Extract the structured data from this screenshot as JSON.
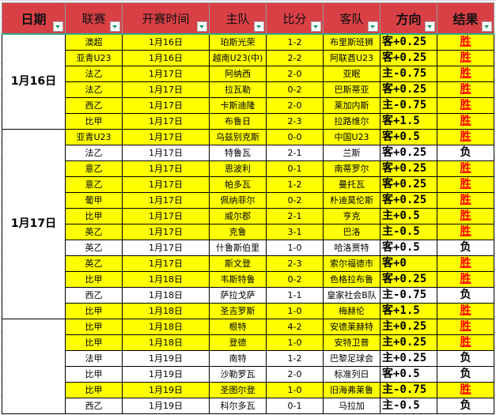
{
  "headers": [
    "日期",
    "联赛",
    "开赛时间",
    "主队",
    "比分",
    "客队",
    "方向",
    "结果"
  ],
  "groups": [
    {
      "date": "1月16日",
      "rows": 6
    },
    {
      "date": "1月17日",
      "rows": 12
    },
    {
      "date": "",
      "rows": 6
    }
  ],
  "rows": [
    [
      "澳超",
      "1月16日",
      "珀斯光荣",
      "1-2",
      "布里斯班狮",
      "客+0.25",
      "胜"
    ],
    [
      "亚青U23",
      "1月16日",
      "越南U23(中)",
      "2-2",
      "阿联酋U23",
      "客+0.25",
      "胜"
    ],
    [
      "法乙",
      "1月17日",
      "阿纳西",
      "2-0",
      "亚眠",
      "主-0.75",
      "胜"
    ],
    [
      "法乙",
      "1月17日",
      "拉瓦勒",
      "0-2",
      "巴斯蒂亚",
      "客+0.25",
      "胜"
    ],
    [
      "西乙",
      "1月17日",
      "卡斯迪隆",
      "2-0",
      "莱加内斯",
      "主-0.75",
      "胜"
    ],
    [
      "比甲",
      "1月17日",
      "布鲁日",
      "2-3",
      "拉路维尔",
      "客+1.5",
      "胜"
    ],
    [
      "亚青U23",
      "1月17日",
      "乌兹别克斯",
      "0-0",
      "中国U23",
      "客+0.5",
      "胜"
    ],
    [
      "法乙",
      "1月17日",
      "特鲁瓦",
      "2-1",
      "兰斯",
      "客+0.25",
      "负"
    ],
    [
      "意乙",
      "1月17日",
      "恩波利",
      "0-1",
      "南蒂罗尔",
      "客+0.25",
      "胜"
    ],
    [
      "意乙",
      "1月17日",
      "帕多瓦",
      "1-2",
      "曼托瓦",
      "客+0.25",
      "胜"
    ],
    [
      "葡甲",
      "1月17日",
      "佩纳菲尔",
      "0-2",
      "朴迪莫伦斯",
      "客+0.25",
      "胜"
    ],
    [
      "比甲",
      "1月17日",
      "威尔郡",
      "2-1",
      "亨克",
      "主+0.5",
      "胜"
    ],
    [
      "英乙",
      "1月17日",
      "克鲁",
      "3-1",
      "巴洛",
      "主-0.5",
      "胜"
    ],
    [
      "英乙",
      "1月17日",
      "什鲁斯伯里",
      "1-0",
      "哈洛贾特",
      "客+0.5",
      "负"
    ],
    [
      "英乙",
      "1月17日",
      "斯文登",
      "2-3",
      "索尔福德市",
      "客+0",
      "胜"
    ],
    [
      "比甲",
      "1月18日",
      "韦斯特鲁",
      "0-2",
      "色格拉布鲁",
      "客+0.25",
      "胜"
    ],
    [
      "西乙",
      "1月18日",
      "萨拉戈萨",
      "1-1",
      "皇家社会B队",
      "主-0.75",
      "负"
    ],
    [
      "比甲",
      "1月18日",
      "圣吉罗斯",
      "1-0",
      "梅赫伦",
      "客+1.5",
      "胜"
    ],
    [
      "比甲",
      "1月18日",
      "根特",
      "4-2",
      "安德莱赫特",
      "主+0.25",
      "胜"
    ],
    [
      "比甲",
      "1月18日",
      "登德",
      "1-0",
      "安特卫普",
      "主+0.25",
      "胜"
    ],
    [
      "法甲",
      "1月19日",
      "南特",
      "1-2",
      "巴黎足球会",
      "主+0.25",
      "负"
    ],
    [
      "比甲",
      "1月19日",
      "沙勒罗瓦",
      "2-0",
      "标准列日",
      "客+0.5",
      "负"
    ],
    [
      "比甲",
      "1月19日",
      "圣图尔登",
      "1-0",
      "旧海弗莱鲁",
      "主-0.75",
      "胜"
    ],
    [
      "西乙",
      "1月19日",
      "科尔多瓦",
      "0-1",
      "马拉加",
      "主-0.5",
      "负"
    ]
  ],
  "colors": {
    "header": "#d94046",
    "win_row": "#ffff00",
    "win_text": "#ff0000"
  }
}
